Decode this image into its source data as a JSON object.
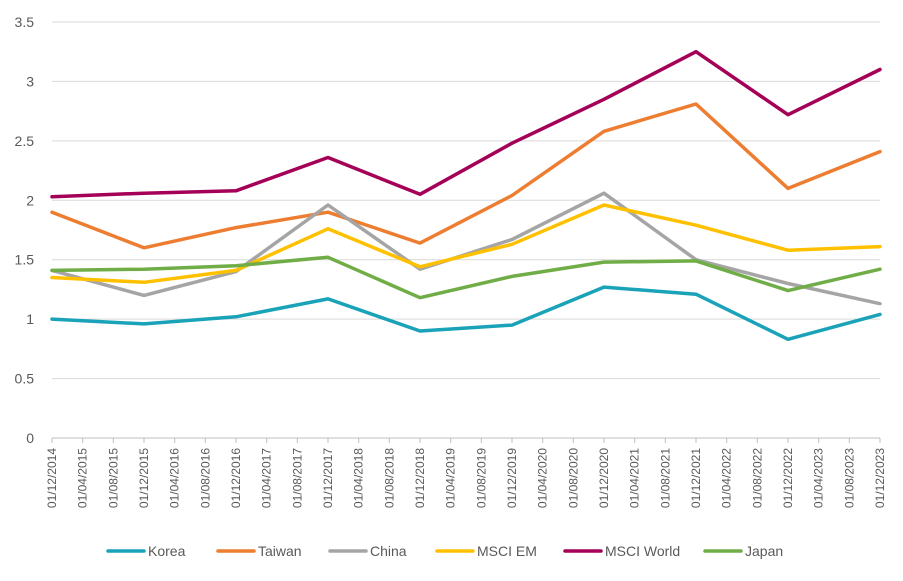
{
  "chart_data": {
    "type": "line",
    "title": "",
    "xlabel": "",
    "ylabel": "",
    "ylim": [
      0,
      3.5
    ],
    "yticks": [
      "0",
      "0.5",
      "1",
      "1.5",
      "2",
      "2.5",
      "3",
      "3.5"
    ],
    "grid": true,
    "legend_position": "bottom",
    "x_tick_labels": [
      "01/12/2014",
      "01/04/2015",
      "01/08/2015",
      "01/12/2015",
      "01/04/2016",
      "01/08/2016",
      "01/12/2016",
      "01/04/2017",
      "01/08/2017",
      "01/12/2017",
      "01/04/2018",
      "01/08/2018",
      "01/12/2018",
      "01/04/2019",
      "01/08/2019",
      "01/12/2019",
      "01/04/2020",
      "01/08/2020",
      "01/12/2020",
      "01/04/2021",
      "01/08/2021",
      "01/12/2021",
      "01/04/2022",
      "01/08/2022",
      "01/12/2022",
      "01/04/2023",
      "01/08/2023",
      "01/12/2023"
    ],
    "x": [
      "01/12/2014",
      "01/12/2015",
      "01/12/2016",
      "01/12/2017",
      "01/12/2018",
      "01/12/2019",
      "01/12/2020",
      "01/12/2021",
      "01/12/2022",
      "01/12/2023"
    ],
    "series": [
      {
        "name": "Korea",
        "color": "#1aa3b8",
        "values": [
          1.0,
          0.96,
          1.02,
          1.17,
          0.9,
          0.95,
          1.27,
          1.21,
          0.83,
          1.04
        ]
      },
      {
        "name": "Taiwan",
        "color": "#ed7d31",
        "values": [
          1.9,
          1.6,
          1.77,
          1.9,
          1.64,
          2.04,
          2.58,
          2.81,
          2.1,
          2.41
        ]
      },
      {
        "name": "China",
        "color": "#a5a5a5",
        "values": [
          1.41,
          1.2,
          1.4,
          1.96,
          1.42,
          1.67,
          2.06,
          1.5,
          1.3,
          1.13
        ]
      },
      {
        "name": "MSCI EM",
        "color": "#ffc000",
        "values": [
          1.35,
          1.31,
          1.41,
          1.76,
          1.44,
          1.63,
          1.96,
          1.79,
          1.58,
          1.61
        ]
      },
      {
        "name": "MSCI World",
        "color": "#a50057",
        "values": [
          2.03,
          2.06,
          2.08,
          2.36,
          2.05,
          2.48,
          2.85,
          3.25,
          2.72,
          3.1
        ]
      },
      {
        "name": "Japan",
        "color": "#70ad47",
        "values": [
          1.41,
          1.42,
          1.45,
          1.52,
          1.18,
          1.36,
          1.48,
          1.49,
          1.24,
          1.42
        ]
      }
    ]
  }
}
